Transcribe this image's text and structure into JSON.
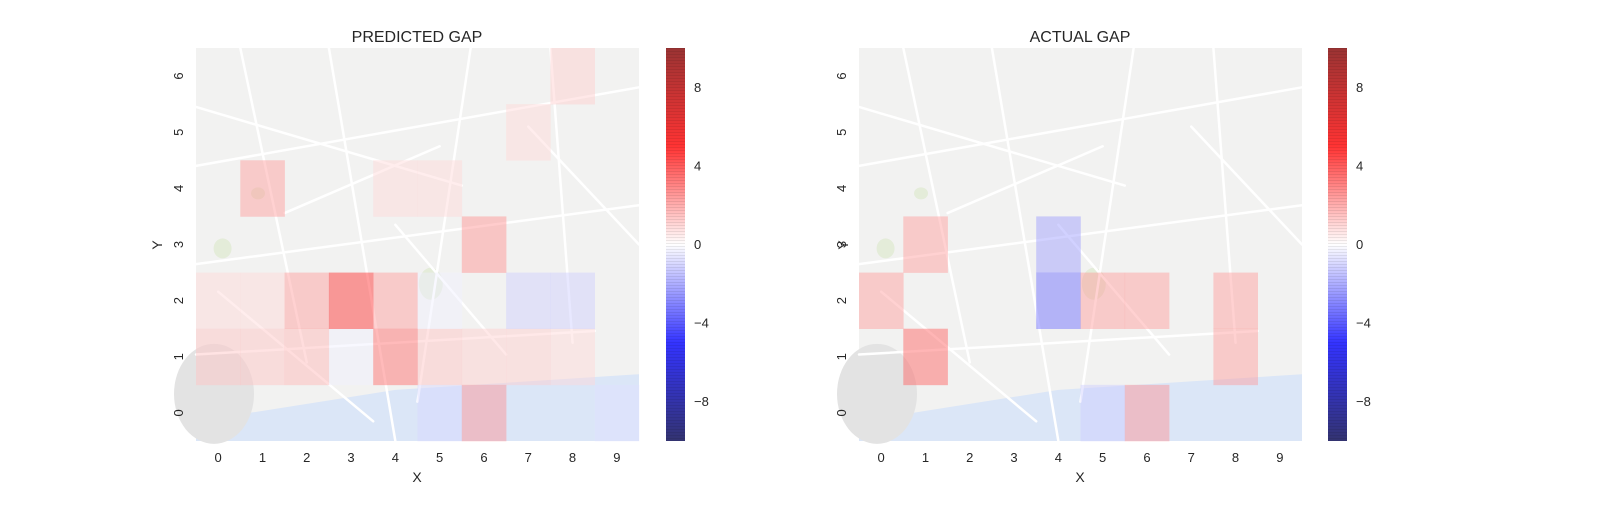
{
  "chart_data": [
    {
      "type": "heatmap",
      "title": "PREDICTED GAP",
      "xlabel": "X",
      "ylabel": "Y",
      "x": [
        0,
        1,
        2,
        3,
        4,
        5,
        6,
        7,
        8,
        9
      ],
      "y": [
        0,
        1,
        2,
        3,
        4,
        5,
        6
      ],
      "colorbar": {
        "range": [
          -10,
          10
        ],
        "ticks": [
          8,
          4,
          0,
          -4,
          -8
        ],
        "colormap": "seismic"
      },
      "background": "street map",
      "grid": false,
      "cells": [
        {
          "x": 0,
          "y": 1,
          "value": 1.2
        },
        {
          "x": 1,
          "y": 1,
          "value": 1.2
        },
        {
          "x": 2,
          "y": 1,
          "value": 1.5
        },
        {
          "x": 3,
          "y": 1,
          "value": -0.3
        },
        {
          "x": 4,
          "y": 1,
          "value": 3.0
        },
        {
          "x": 5,
          "y": 1,
          "value": 1.2
        },
        {
          "x": 6,
          "y": 1,
          "value": 1.0
        },
        {
          "x": 7,
          "y": 1,
          "value": 1.0
        },
        {
          "x": 8,
          "y": 1,
          "value": 0.8
        },
        {
          "x": 0,
          "y": 2,
          "value": 0.8
        },
        {
          "x": 1,
          "y": 2,
          "value": 0.8
        },
        {
          "x": 2,
          "y": 2,
          "value": 2.0
        },
        {
          "x": 3,
          "y": 2,
          "value": 4.2
        },
        {
          "x": 4,
          "y": 2,
          "value": 2.0
        },
        {
          "x": 5,
          "y": 2,
          "value": -0.3
        },
        {
          "x": 7,
          "y": 2,
          "value": -1.0
        },
        {
          "x": 8,
          "y": 2,
          "value": -1.0
        },
        {
          "x": 6,
          "y": 3,
          "value": 2.2
        },
        {
          "x": 1,
          "y": 4,
          "value": 2.0
        },
        {
          "x": 4,
          "y": 4,
          "value": 0.8
        },
        {
          "x": 5,
          "y": 4,
          "value": 0.8
        },
        {
          "x": 7,
          "y": 5,
          "value": 0.8
        },
        {
          "x": 8,
          "y": 6,
          "value": 1.0
        },
        {
          "x": 5,
          "y": 0,
          "value": -0.8
        },
        {
          "x": 6,
          "y": 0,
          "value": 2.2
        },
        {
          "x": 9,
          "y": 0,
          "value": -0.6
        }
      ]
    },
    {
      "type": "heatmap",
      "title": "ACTUAL GAP",
      "xlabel": "X",
      "ylabel": "Y",
      "x": [
        0,
        1,
        2,
        3,
        4,
        5,
        6,
        7,
        8,
        9
      ],
      "y": [
        0,
        1,
        2,
        3,
        4,
        5,
        6
      ],
      "colorbar": {
        "range": [
          -10,
          10
        ],
        "ticks": [
          8,
          4,
          0,
          -4,
          -8
        ],
        "colormap": "seismic"
      },
      "background": "street map",
      "grid": false,
      "cells": [
        {
          "x": 1,
          "y": 1,
          "value": 3.2
        },
        {
          "x": 8,
          "y": 1,
          "value": 2.0
        },
        {
          "x": 0,
          "y": 2,
          "value": 2.0
        },
        {
          "x": 4,
          "y": 2,
          "value": -3.0
        },
        {
          "x": 5,
          "y": 2,
          "value": 2.0
        },
        {
          "x": 6,
          "y": 2,
          "value": 2.0
        },
        {
          "x": 8,
          "y": 2,
          "value": 2.0
        },
        {
          "x": 1,
          "y": 3,
          "value": 2.0
        },
        {
          "x": 4,
          "y": 3,
          "value": -2.0
        },
        {
          "x": 5,
          "y": 0,
          "value": -1.0
        },
        {
          "x": 6,
          "y": 0,
          "value": 2.2
        }
      ]
    }
  ]
}
